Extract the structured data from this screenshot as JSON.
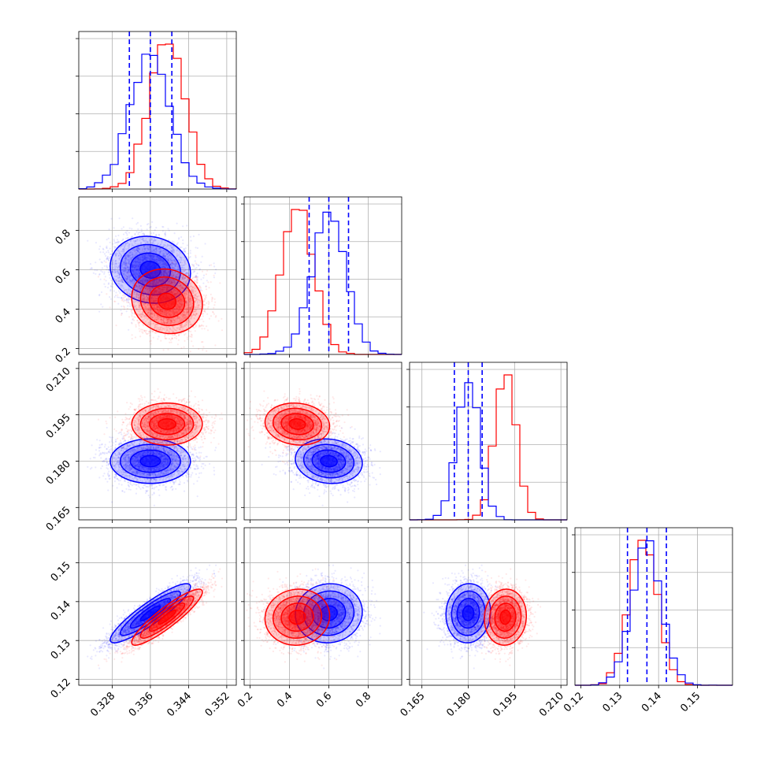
{
  "chart_data": {
    "type": "corner",
    "grid": true,
    "colors": {
      "blue": "#0000ff",
      "red": "#ff0000"
    },
    "parameters": [
      {
        "range": [
          0.321,
          0.354
        ],
        "ticks": [
          0.328,
          0.336,
          0.344,
          0.352
        ],
        "tick_labels": [
          "0.328",
          "0.336",
          "0.344",
          "0.352"
        ]
      },
      {
        "range": [
          0.17,
          0.97
        ],
        "ticks": [
          0.2,
          0.4,
          0.6,
          0.8
        ],
        "tick_labels": [
          "0.2",
          "0.4",
          "0.6",
          "0.8"
        ]
      },
      {
        "range": [
          0.161,
          0.212
        ],
        "ticks": [
          0.165,
          0.18,
          0.195,
          0.21
        ],
        "tick_labels": [
          "0.165",
          "0.180",
          "0.195",
          "0.210"
        ]
      },
      {
        "range": [
          0.1185,
          0.159
        ],
        "ticks": [
          0.12,
          0.13,
          0.14,
          0.15
        ],
        "tick_labels": [
          "0.12",
          "0.13",
          "0.14",
          "0.15"
        ]
      }
    ],
    "series": [
      {
        "color": "#0000ff",
        "mean": [
          0.336,
          0.6,
          0.18,
          0.137
        ],
        "std": [
          0.0042,
          0.085,
          0.0036,
          0.0038
        ],
        "correlations": [
          [
            0,
            1,
            -0.1
          ],
          [
            0,
            2,
            0
          ],
          [
            0,
            3,
            0.9
          ],
          [
            1,
            2,
            -0.1
          ],
          [
            1,
            3,
            0.05
          ],
          [
            2,
            3,
            0.05
          ]
        ],
        "quantiles": [
          [
            0.3316,
            0.336,
            0.3405
          ],
          [
            0.5,
            0.6,
            0.7
          ],
          [
            0.1755,
            0.18,
            0.1845
          ],
          [
            0.132,
            0.137,
            0.142
          ]
        ]
      },
      {
        "color": "#ff0000",
        "mean": [
          0.3395,
          0.44,
          0.192,
          0.136
        ],
        "std": [
          0.0037,
          0.082,
          0.0034,
          0.0036
        ],
        "correlations": [
          [
            0,
            1,
            -0.1
          ],
          [
            0,
            2,
            0
          ],
          [
            0,
            3,
            0.9
          ],
          [
            1,
            2,
            -0.1
          ],
          [
            1,
            3,
            0.05
          ],
          [
            2,
            3,
            0.05
          ]
        ]
      }
    ]
  }
}
